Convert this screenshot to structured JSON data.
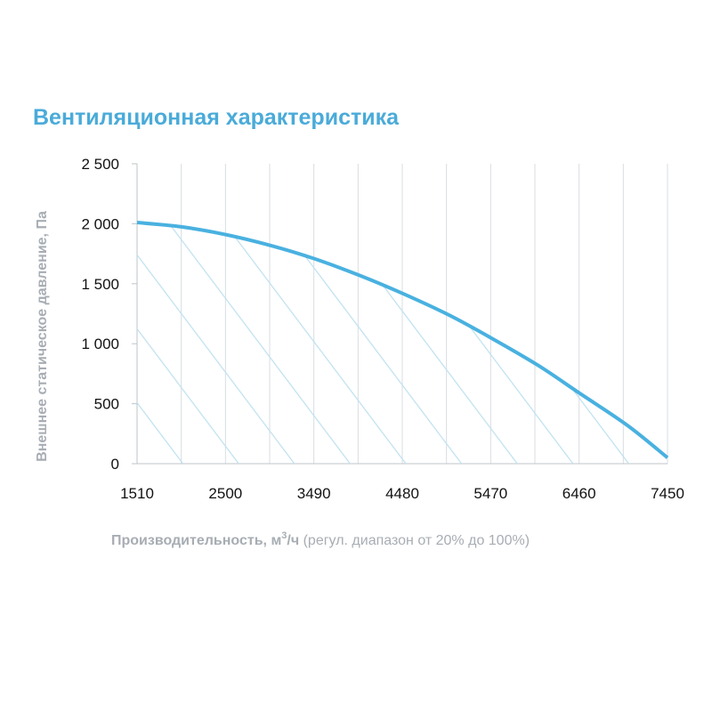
{
  "colors": {
    "title": "#4aabd9",
    "curve": "#49b1e0",
    "hatch": "#bfe1f0",
    "grid": "#d9dde2",
    "axis_label": "#a7adb3"
  },
  "chart_data": {
    "type": "line",
    "title": "Вентиляционная характеристика",
    "xlabel": {
      "bold": "Производительность, м",
      "sup": "3",
      "unit": "/ч",
      "normal": " (регул. диапазон от 20% до 100%)"
    },
    "ylabel": "Внешнее статическое давление, Па",
    "xlim": [
      1510,
      7450
    ],
    "ylim": [
      0,
      2500
    ],
    "x_ticks": [
      1510,
      2500,
      3490,
      4480,
      5470,
      6460,
      7450
    ],
    "x_tick_labels": [
      "1510",
      "2500",
      "3490",
      "4480",
      "5470",
      "6460",
      "7450"
    ],
    "y_ticks": [
      0,
      500,
      1000,
      1500,
      2000,
      2500
    ],
    "y_tick_labels": [
      "0",
      "500",
      "1 000",
      "1 500",
      "2 000",
      "2 500"
    ],
    "grid": true,
    "hatched_area": true,
    "series": [
      {
        "x": [
          1510,
          2000,
          2500,
          3000,
          3490,
          4000,
          4480,
          5000,
          5470,
          6000,
          6460,
          7000,
          7450
        ],
        "y": [
          2010,
          1975,
          1910,
          1820,
          1710,
          1570,
          1420,
          1240,
          1050,
          820,
          590,
          320,
          50
        ]
      }
    ]
  }
}
